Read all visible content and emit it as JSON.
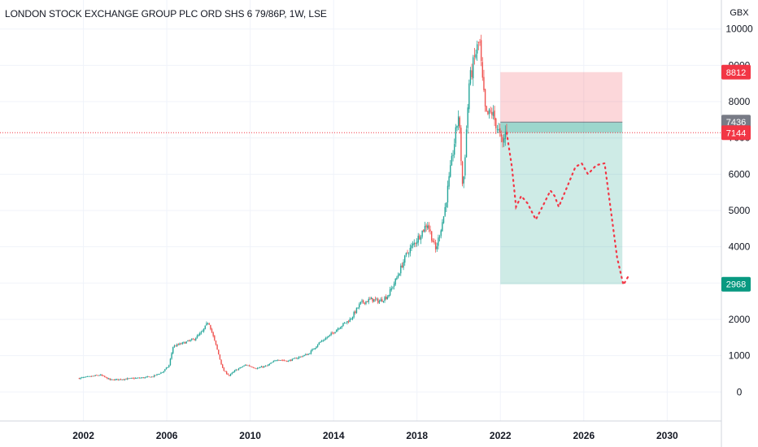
{
  "header": {
    "title": "LONDON STOCK EXCHANGE GROUP PLC ORD SHS 6 79/86P, 1W, LSE"
  },
  "chart_data": {
    "type": "candlestick",
    "currency": "GBX",
    "x_ticks": [
      "2002",
      "2006",
      "2010",
      "2014",
      "2018",
      "2022",
      "2026",
      "2030"
    ],
    "y_ticks": [
      0,
      1000,
      2000,
      3000,
      4000,
      5000,
      6000,
      7000,
      8000,
      9000,
      10000
    ],
    "y_range": [
      -800,
      10800
    ],
    "x_range": [
      1998.0,
      2032.6
    ],
    "grid": true,
    "colors": {
      "up": "#26a69a",
      "down": "#ef5350",
      "label_gray": "#787b86"
    },
    "price_path": [
      [
        2001.8,
        380
      ],
      [
        2002.3,
        420
      ],
      [
        2002.8,
        470
      ],
      [
        2003.3,
        330
      ],
      [
        2003.8,
        350
      ],
      [
        2004.3,
        370
      ],
      [
        2004.8,
        390
      ],
      [
        2005.3,
        420
      ],
      [
        2005.8,
        550
      ],
      [
        2006.1,
        720
      ],
      [
        2006.3,
        1250
      ],
      [
        2006.8,
        1350
      ],
      [
        2007.3,
        1450
      ],
      [
        2007.7,
        1650
      ],
      [
        2008.0,
        1950
      ],
      [
        2008.4,
        1200
      ],
      [
        2008.7,
        600
      ],
      [
        2009.0,
        450
      ],
      [
        2009.3,
        600
      ],
      [
        2009.8,
        750
      ],
      [
        2010.3,
        650
      ],
      [
        2010.8,
        720
      ],
      [
        2011.3,
        900
      ],
      [
        2011.8,
        850
      ],
      [
        2012.3,
        950
      ],
      [
        2012.8,
        1050
      ],
      [
        2013.3,
        1350
      ],
      [
        2013.8,
        1550
      ],
      [
        2014.3,
        1800
      ],
      [
        2014.8,
        2000
      ],
      [
        2015.3,
        2450
      ],
      [
        2015.8,
        2550
      ],
      [
        2016.2,
        2500
      ],
      [
        2016.6,
        2650
      ],
      [
        2017.0,
        3100
      ],
      [
        2017.5,
        3800
      ],
      [
        2018.0,
        4200
      ],
      [
        2018.5,
        4650
      ],
      [
        2018.9,
        3900
      ],
      [
        2019.3,
        4900
      ],
      [
        2019.7,
        6500
      ],
      [
        2020.0,
        7700
      ],
      [
        2020.2,
        5500
      ],
      [
        2020.5,
        8500
      ],
      [
        2020.8,
        9300
      ],
      [
        2021.0,
        9700
      ],
      [
        2021.1,
        8800
      ],
      [
        2021.3,
        7600
      ],
      [
        2021.6,
        7700
      ],
      [
        2021.9,
        7200
      ],
      [
        2022.1,
        6800
      ],
      [
        2022.3,
        7300
      ]
    ],
    "candle_seed": 7,
    "annotations": {
      "entry": 7436,
      "stop": 8812,
      "target": 2968,
      "current": 7144,
      "position_x_range": [
        2022.0,
        2027.85
      ]
    },
    "projection": [
      [
        2022.3,
        7144
      ],
      [
        2022.55,
        6200
      ],
      [
        2022.75,
        5100
      ],
      [
        2023.0,
        5400
      ],
      [
        2023.3,
        5200
      ],
      [
        2023.7,
        4750
      ],
      [
        2024.1,
        5200
      ],
      [
        2024.4,
        5550
      ],
      [
        2024.6,
        5400
      ],
      [
        2024.8,
        5100
      ],
      [
        2025.2,
        5650
      ],
      [
        2025.6,
        6200
      ],
      [
        2025.9,
        6300
      ],
      [
        2026.2,
        6000
      ],
      [
        2026.6,
        6250
      ],
      [
        2027.0,
        6300
      ],
      [
        2027.3,
        5000
      ],
      [
        2027.6,
        3700
      ],
      [
        2027.9,
        2950
      ],
      [
        2028.2,
        3250
      ]
    ],
    "price_tags": [
      {
        "label": "8812",
        "value": 8812,
        "color": "#f23645"
      },
      {
        "label": "7436",
        "value": 7436,
        "color": "#787b86"
      },
      {
        "label": "7144",
        "value": 7144,
        "color": "#f23645"
      },
      {
        "label": "2968",
        "value": 2968,
        "color": "#089981"
      }
    ]
  }
}
